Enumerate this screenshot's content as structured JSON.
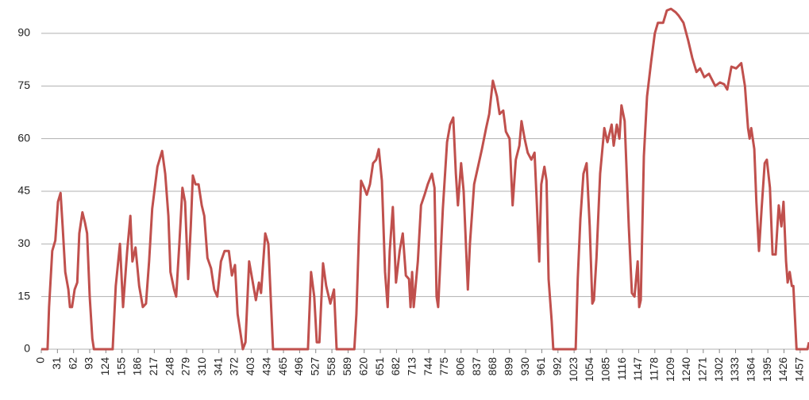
{
  "chart_data": {
    "type": "line",
    "x": [
      0,
      12,
      15,
      21,
      27,
      32,
      37,
      41,
      46,
      52,
      55,
      59,
      64,
      69,
      73,
      79,
      84,
      88,
      93,
      98,
      101,
      137,
      143,
      151,
      157,
      165,
      171,
      175,
      181,
      188,
      195,
      201,
      207,
      213,
      223,
      232,
      238,
      244,
      248,
      255,
      259,
      265,
      271,
      276,
      282,
      287,
      291,
      296,
      302,
      308,
      313,
      319,
      326,
      332,
      338,
      345,
      352,
      360,
      366,
      372,
      377,
      383,
      387,
      392,
      399,
      405,
      412,
      418,
      422,
      430,
      436,
      445,
      512,
      518,
      524,
      529,
      534,
      541,
      547,
      555,
      562,
      567,
      601,
      605,
      610,
      614,
      620,
      625,
      631,
      637,
      643,
      648,
      654,
      660,
      665,
      669,
      675,
      681,
      688,
      694,
      700,
      706,
      709,
      712,
      715,
      723,
      729,
      736,
      742,
      750,
      755,
      759,
      762,
      771,
      779,
      785,
      791,
      796,
      800,
      806,
      811,
      819,
      823,
      831,
      840,
      846,
      854,
      860,
      867,
      875,
      880,
      887,
      892,
      899,
      905,
      911,
      918,
      922,
      928,
      934,
      941,
      947,
      951,
      956,
      960,
      966,
      970,
      974,
      980,
      983,
      1026,
      1030,
      1035,
      1041,
      1047,
      1053,
      1058,
      1061,
      1066,
      1073,
      1081,
      1087,
      1095,
      1099,
      1105,
      1110,
      1114,
      1120,
      1128,
      1134,
      1139,
      1145,
      1148,
      1151,
      1157,
      1163,
      1171,
      1178,
      1184,
      1194,
      1201,
      1209,
      1218,
      1224,
      1233,
      1242,
      1250,
      1258,
      1265,
      1273,
      1282,
      1294,
      1303,
      1311,
      1317,
      1325,
      1334,
      1344,
      1351,
      1357,
      1360,
      1363,
      1369,
      1373,
      1378,
      1383,
      1389,
      1393,
      1399,
      1404,
      1410,
      1416,
      1421,
      1425,
      1430,
      1433,
      1437,
      1441,
      1444,
      1450,
      1471,
      1474
    ],
    "series": [
      {
        "color": "#c0504d",
        "values": [
          0,
          0,
          12,
          28,
          31,
          42,
          44.5,
          35,
          22,
          17,
          12,
          12,
          17,
          19,
          33,
          39,
          36,
          33,
          15,
          3,
          0,
          0,
          18,
          30,
          12,
          28,
          38,
          25,
          29,
          18,
          12,
          13,
          25,
          40,
          52,
          56.5,
          50,
          38,
          22,
          17,
          15,
          30,
          46,
          42,
          20,
          35,
          49.5,
          47,
          47,
          41,
          38,
          26,
          23,
          17,
          15,
          25,
          28,
          28,
          21,
          24,
          10,
          4,
          0,
          2,
          25,
          20,
          14,
          19,
          16,
          33,
          30,
          0,
          0,
          22,
          15,
          2,
          2,
          24.5,
          18,
          13,
          17,
          0,
          0,
          10,
          33,
          48,
          46,
          44,
          47,
          53,
          54,
          57,
          48,
          22,
          12,
          28,
          40.5,
          19,
          28,
          33,
          21,
          20,
          12,
          22,
          12,
          25,
          41,
          44,
          47,
          50,
          46,
          15,
          12,
          40,
          59,
          64,
          66,
          50,
          41,
          53,
          45,
          17,
          30,
          47,
          53,
          57,
          63,
          67,
          76.5,
          72,
          67,
          68,
          62,
          60,
          41,
          54,
          58,
          65,
          60,
          56,
          54,
          56,
          43,
          25,
          47,
          52,
          48,
          20,
          8,
          0,
          0,
          20,
          37,
          50,
          53,
          35,
          13,
          14,
          26,
          50,
          63,
          59,
          64,
          58,
          64,
          60,
          69.5,
          65,
          35,
          16,
          15,
          25,
          12,
          14,
          55,
          72,
          82,
          90,
          93,
          93,
          96.5,
          97,
          96,
          95,
          93,
          88,
          83,
          79,
          80,
          77.5,
          78.5,
          75,
          76,
          75.5,
          74,
          80.5,
          80,
          81.5,
          75,
          63,
          60,
          63,
          57,
          42,
          28,
          40,
          53,
          54,
          46,
          27,
          27,
          41,
          35,
          42,
          25,
          19,
          22,
          18,
          18,
          0,
          0,
          2
        ]
      }
    ],
    "xlim": [
      0,
      1474
    ],
    "xticks": [
      0,
      31,
      62,
      93,
      124,
      155,
      186,
      217,
      248,
      279,
      310,
      341,
      372,
      403,
      434,
      465,
      496,
      527,
      558,
      589,
      620,
      651,
      682,
      713,
      744,
      775,
      806,
      837,
      868,
      899,
      930,
      961,
      992,
      1023,
      1054,
      1085,
      1116,
      1147,
      1178,
      1209,
      1240,
      1271,
      1302,
      1333,
      1364,
      1395,
      1426,
      1457
    ],
    "ylim": [
      0,
      99.5
    ],
    "yticks": [
      0,
      15,
      30,
      45,
      60,
      75,
      90
    ],
    "grid": true
  }
}
